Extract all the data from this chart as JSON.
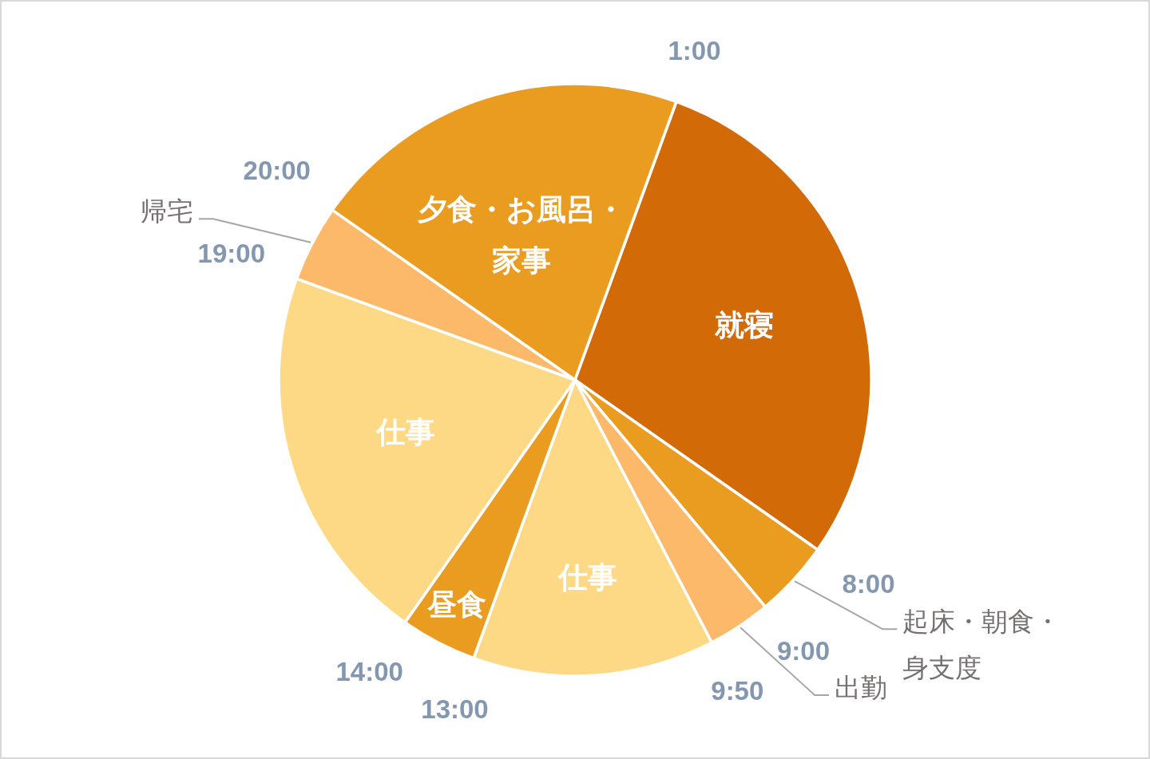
{
  "chart_data": {
    "type": "pie",
    "categories": [
      "就寝",
      "起床・朝食・身支度",
      "出勤",
      "仕事",
      "昼食",
      "仕事",
      "帰宅",
      "夕食・お風呂・家事"
    ],
    "values": [
      29.17,
      4.17,
      3.47,
      13.19,
      4.17,
      20.83,
      4.17,
      20.83
    ],
    "colors": [
      "#d26a08",
      "#ea9c20",
      "#fdb96a",
      "#fed985",
      "#ea9c20",
      "#fed985",
      "#fdb96a",
      "#ea9c20"
    ],
    "annotations": [
      "1:00",
      "8:00",
      "9:00",
      "9:50",
      "13:00",
      "14:00",
      "19:00",
      "20:00"
    ]
  }
}
